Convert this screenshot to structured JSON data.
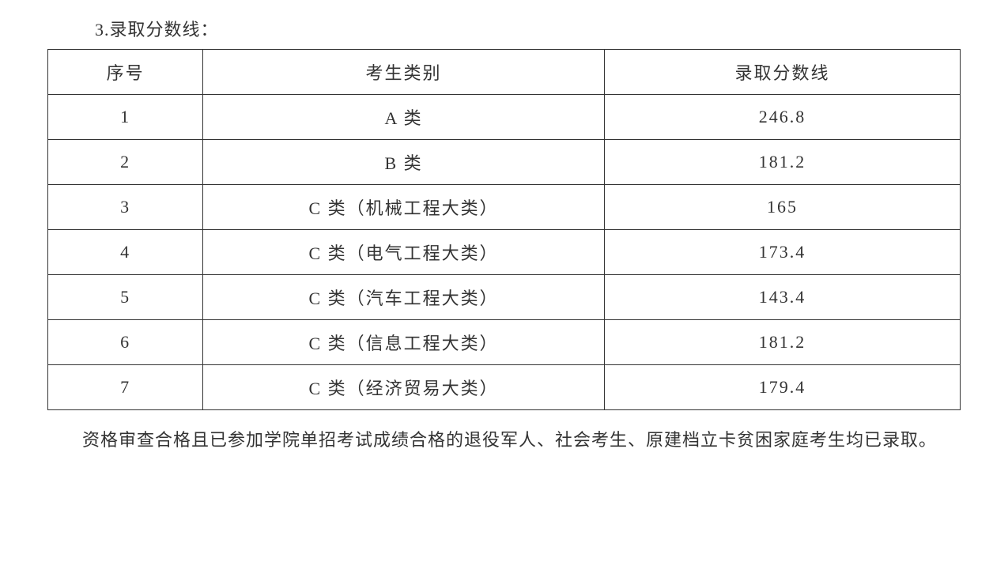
{
  "heading": "3.录取分数线：",
  "table": {
    "columns": [
      "序号",
      "考生类别",
      "录取分数线"
    ],
    "rows": [
      [
        "1",
        "A 类",
        "246.8"
      ],
      [
        "2",
        "B 类",
        "181.2"
      ],
      [
        "3",
        "C 类（机械工程大类）",
        "165"
      ],
      [
        "4",
        "C 类（电气工程大类）",
        "173.4"
      ],
      [
        "5",
        "C 类（汽车工程大类）",
        "143.4"
      ],
      [
        "6",
        "C 类（信息工程大类）",
        "181.2"
      ],
      [
        "7",
        "C 类（经济贸易大类）",
        "179.4"
      ]
    ],
    "border_color": "#333333",
    "text_color": "#333333",
    "background_color": "#ffffff",
    "header_fontsize": 22,
    "cell_fontsize": 22,
    "col_widths_pct": [
      17,
      44,
      39
    ]
  },
  "paragraph": "资格审查合格且已参加学院单招考试成绩合格的退役军人、社会考生、原建档立卡贫困家庭考生均已录取。"
}
